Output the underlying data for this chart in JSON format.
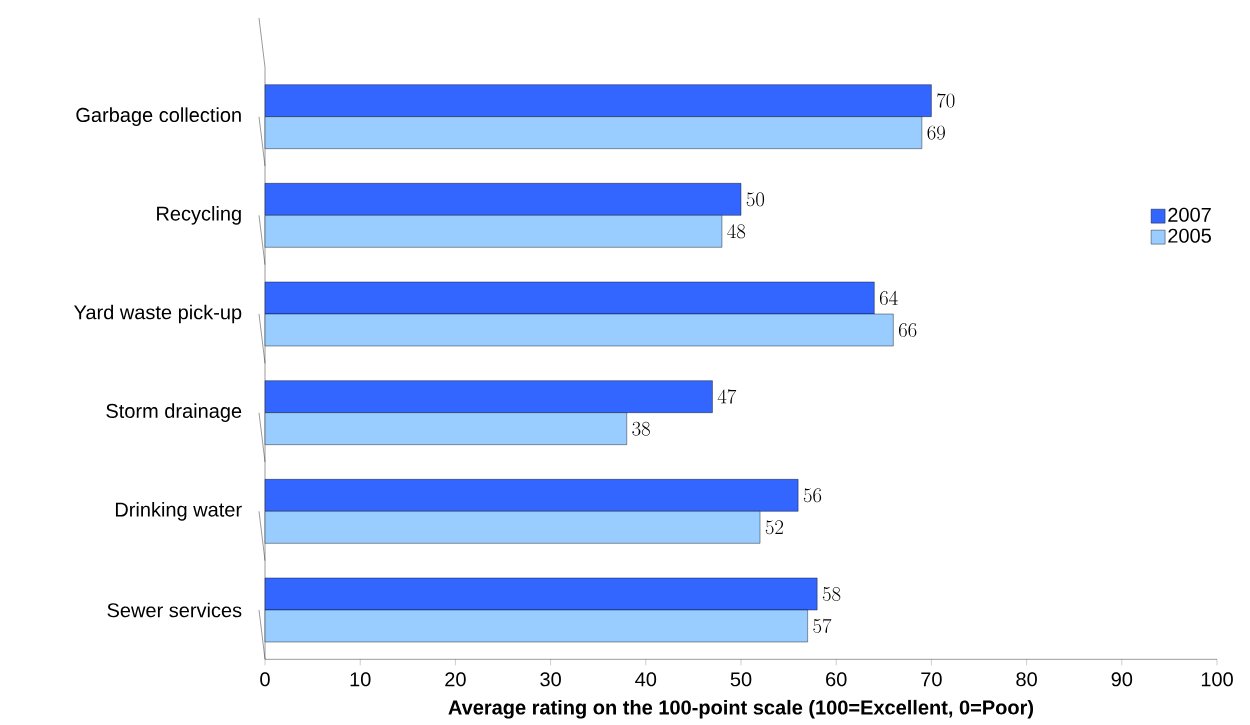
{
  "chart_data": {
    "type": "bar",
    "orientation": "horizontal",
    "xlabel": "Average rating on the 100-point scale (100=Excellent, 0=Poor)",
    "categories": [
      "Garbage collection",
      "Recycling",
      "Yard waste pick-up",
      "Storm drainage",
      "Drinking water",
      "Sewer services"
    ],
    "series": [
      {
        "name": "2007",
        "color": "#3366ff",
        "values": [
          70,
          50,
          64,
          47,
          56,
          58
        ]
      },
      {
        "name": "2005",
        "color": "#99ccff",
        "values": [
          69,
          48,
          66,
          38,
          52,
          57
        ]
      }
    ],
    "xlim": [
      0,
      100
    ],
    "xticks": [
      0,
      10,
      20,
      30,
      40,
      50,
      60,
      70,
      80,
      90,
      100
    ],
    "data_labels": true,
    "grid": false,
    "legend": "top right"
  }
}
